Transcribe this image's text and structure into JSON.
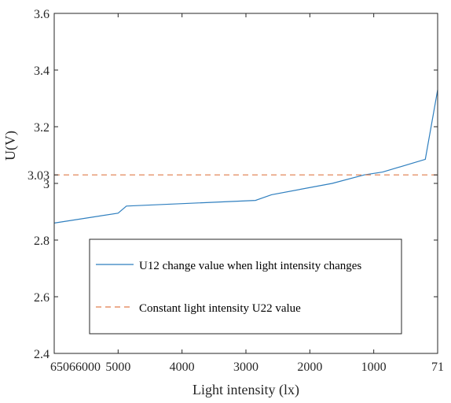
{
  "chart_data": {
    "type": "line",
    "xlabel": "Light intensity (lx)",
    "ylabel": "U(V)",
    "x_reversed": true,
    "xlim": [
      65066000,
      71
    ],
    "ylim": [
      2.4,
      3.6
    ],
    "x_ticks": [
      {
        "value": 65066000,
        "label": "65066000"
      },
      {
        "value": 5000,
        "label": "5000"
      },
      {
        "value": 4000,
        "label": "4000"
      },
      {
        "value": 3000,
        "label": "3000"
      },
      {
        "value": 2000,
        "label": "2000"
      },
      {
        "value": 1000,
        "label": "1000"
      },
      {
        "value": 71,
        "label": "71"
      }
    ],
    "y_ticks": [
      {
        "value": 2.4,
        "label": "2.4"
      },
      {
        "value": 2.6,
        "label": "2.6"
      },
      {
        "value": 2.8,
        "label": "2.8"
      },
      {
        "value": 3.0,
        "label": "3"
      },
      {
        "value": 3.03,
        "label": "3.03"
      },
      {
        "value": 3.2,
        "label": "3.2"
      },
      {
        "value": 3.4,
        "label": "3.4"
      },
      {
        "value": 3.6,
        "label": "3.6"
      }
    ],
    "grid": false,
    "box": true,
    "legend_position": "center-left",
    "series": [
      {
        "name": "U12 change value when light intensity changes",
        "style": "solid",
        "color": "#2f7fbf",
        "points": [
          {
            "x": 65066000,
            "y": 2.86
          },
          {
            "x": 5600,
            "y": 2.895
          },
          {
            "x": 4870,
            "y": 2.92
          },
          {
            "x": 2850,
            "y": 2.94
          },
          {
            "x": 2600,
            "y": 2.96
          },
          {
            "x": 1650,
            "y": 3.0
          },
          {
            "x": 1150,
            "y": 3.03
          },
          {
            "x": 870,
            "y": 3.04
          },
          {
            "x": 250,
            "y": 3.085
          },
          {
            "x": 71,
            "y": 3.33
          }
        ]
      },
      {
        "name": "Constant light intensity U22 value",
        "style": "dashed",
        "color": "#e07b4a",
        "points": [
          {
            "x": 65066000,
            "y": 3.03
          },
          {
            "x": 71,
            "y": 3.03
          }
        ]
      }
    ]
  }
}
